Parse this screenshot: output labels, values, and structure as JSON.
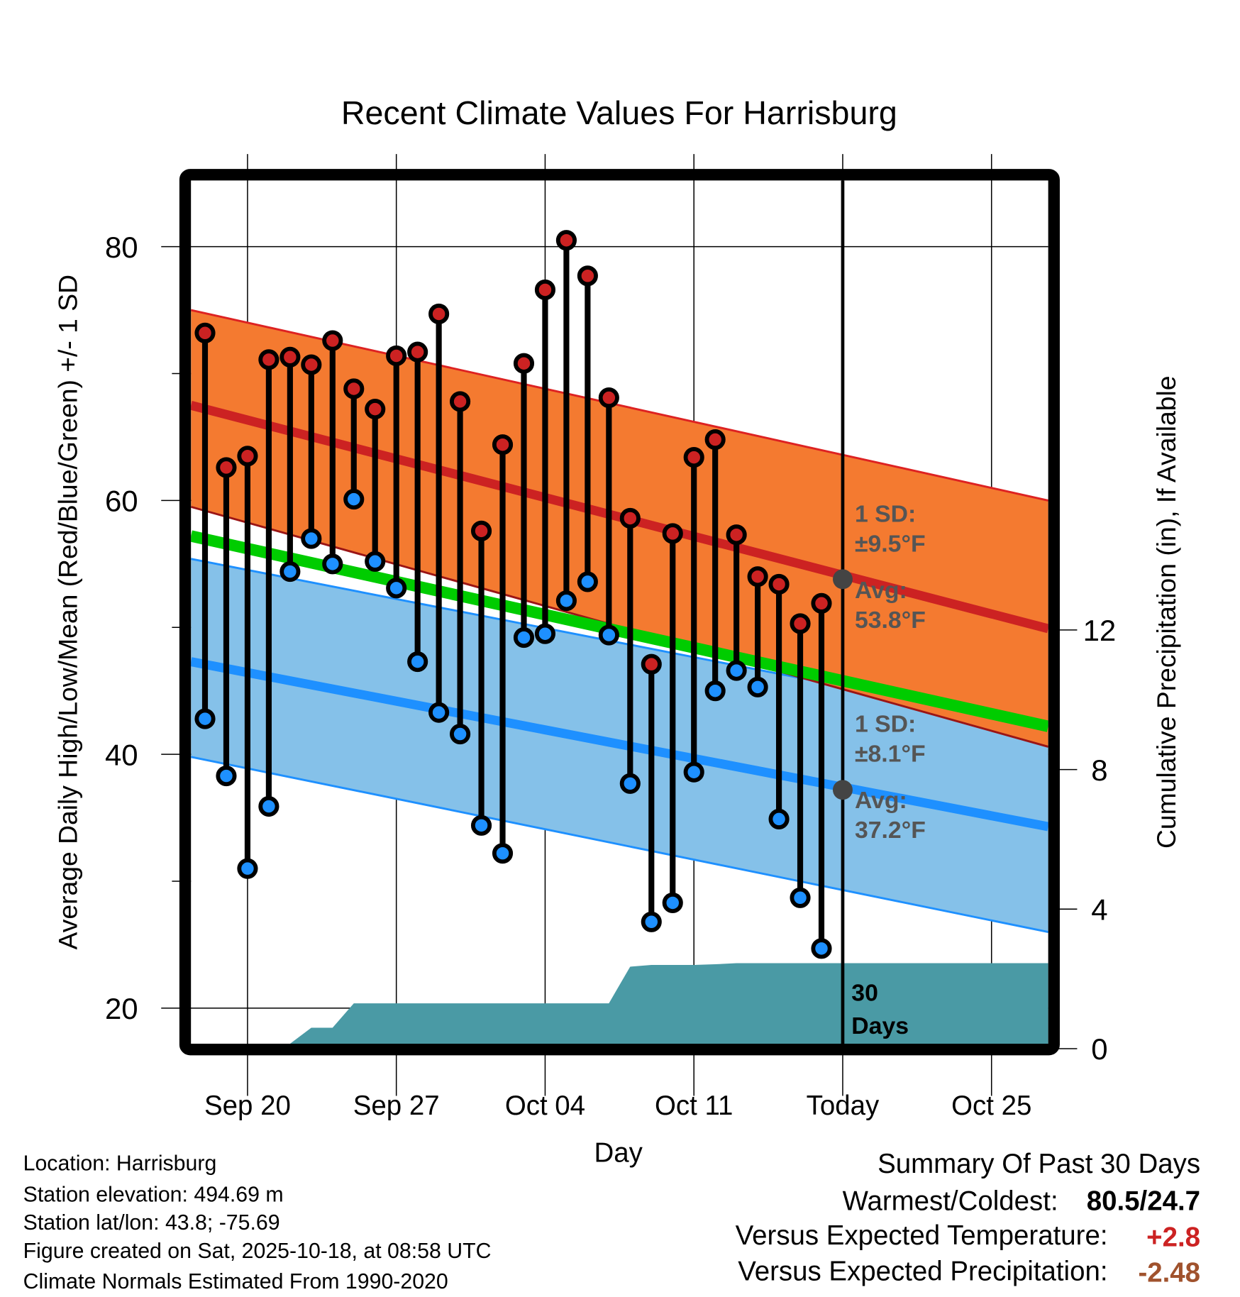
{
  "chart_data": {
    "type": "line",
    "title": "Recent Climate Values For Harrisburg",
    "xlabel": "Day",
    "ylabel": "Average Daily High/Low/Mean (Red/Blue/Green) +/- 1 SD",
    "y2label": "Cumulative Precipitation (in), If Available",
    "ylim": [
      17.1,
      85
    ],
    "y2lim": [
      0,
      24.8
    ],
    "x_range": [
      "Sep 17",
      "Oct 27"
    ],
    "yticks": [
      "80",
      "60",
      "40",
      "20"
    ],
    "yticks_values": [
      80,
      60,
      40,
      20
    ],
    "y2ticks": [
      "12",
      "8",
      "4",
      "0"
    ],
    "y2ticks_values": [
      12,
      8,
      4,
      0
    ],
    "xticks": [
      "Sep 20",
      "Sep 27",
      "Oct 04",
      "Oct 11",
      "Today",
      "Oct 25"
    ],
    "xticks_day_index": [
      2,
      9,
      16,
      23,
      30,
      37
    ],
    "grid": true,
    "dates": [
      "Sep 18",
      "Sep 19",
      "Sep 20",
      "Sep 21",
      "Sep 22",
      "Sep 23",
      "Sep 24",
      "Sep 25",
      "Sep 26",
      "Sep 27",
      "Sep 28",
      "Sep 29",
      "Sep 30",
      "Oct 01",
      "Oct 02",
      "Oct 03",
      "Oct 04",
      "Oct 05",
      "Oct 06",
      "Oct 07",
      "Oct 08",
      "Oct 09",
      "Oct 10",
      "Oct 11",
      "Oct 12",
      "Oct 13",
      "Oct 14",
      "Oct 15",
      "Oct 16",
      "Oct 17"
    ],
    "series": [
      {
        "name": "Daily High",
        "color": "#cc2222",
        "values": [
          73.2,
          62.6,
          63.5,
          71.1,
          71.3,
          70.7,
          72.6,
          68.8,
          67.2,
          71.4,
          71.7,
          74.7,
          67.8,
          57.6,
          64.4,
          70.8,
          76.6,
          80.5,
          77.7,
          68.1,
          58.6,
          47.1,
          57.4,
          63.4,
          64.8,
          57.3,
          54.0,
          53.4,
          50.3,
          51.9
        ]
      },
      {
        "name": "Daily Low",
        "color": "#1e90ff",
        "values": [
          42.8,
          38.3,
          31.0,
          35.9,
          54.4,
          57.0,
          55.0,
          60.1,
          55.2,
          53.1,
          47.3,
          43.3,
          41.6,
          34.4,
          32.2,
          49.2,
          49.5,
          52.1,
          53.6,
          49.4,
          37.7,
          26.8,
          28.3,
          38.6,
          45.0,
          46.6,
          45.3,
          34.9,
          28.7,
          24.7
        ]
      },
      {
        "name": "Cumulative Precipitation (in)",
        "color": "#4a9aa5",
        "values": [
          0,
          0,
          0,
          0,
          0,
          0.6,
          0.6,
          1.3,
          1.3,
          1.3,
          1.3,
          1.3,
          1.3,
          1.3,
          1.3,
          1.3,
          1.3,
          1.3,
          1.3,
          1.3,
          2.35,
          2.4,
          2.4,
          2.4,
          2.42,
          2.45,
          2.45,
          2.45,
          2.45,
          2.45
        ]
      }
    ],
    "normals": {
      "high_plus_sd": [
        75.0,
        60.0
      ],
      "avg_high": [
        67.5,
        49.9
      ],
      "high_minus_sd": [
        59.5,
        40.6
      ],
      "avg_mean": [
        57.2,
        42.2
      ],
      "low_plus_sd": [
        55.4,
        42.2
      ],
      "avg_low": [
        47.3,
        34.3
      ],
      "low_minus_sd": [
        39.8,
        26.0
      ]
    },
    "colors": {
      "high_band": "#f47a30",
      "high_line": "#cc2222",
      "high_band_lower": "#9b1515",
      "mean_line": "#00cc00",
      "low_band": "#85c1e9",
      "low_line": "#1e90ff",
      "precip": "#4a9aa5",
      "annotation": "#555555"
    },
    "annotations": {
      "high_sd_label": "1 SD:",
      "high_sd_value": "±9.5°F",
      "high_avg_label": "Avg:",
      "high_avg_value": "53.8°F",
      "high_avg": 53.8,
      "low_sd_label": "1 SD:",
      "low_sd_value": "±8.1°F",
      "low_avg_label": "Avg:",
      "low_avg_value": "37.2°F",
      "low_avg": 37.2,
      "window_number": "30",
      "window_unit": "Days"
    }
  },
  "info": {
    "location": "Location: Harrisburg",
    "elevation": "Station elevation: 494.69 m",
    "latlon": "Station lat/lon: 43.8; -75.69",
    "created": "Figure created on Sat, 2025-10-18, at 08:58 UTC",
    "normals": "Climate Normals Estimated From 1990-2020"
  },
  "summary": {
    "title": "Summary Of Past 30 Days",
    "warm_cold_label": "Warmest/Coldest:",
    "warm_cold_value": "80.5/24.7",
    "temp_label": "Versus Expected Temperature:",
    "temp_value": "+2.8",
    "temp_color": "#cc2222",
    "precip_label": "Versus Expected Precipitation:",
    "precip_value": "-2.48",
    "precip_color": "#a0522d"
  }
}
